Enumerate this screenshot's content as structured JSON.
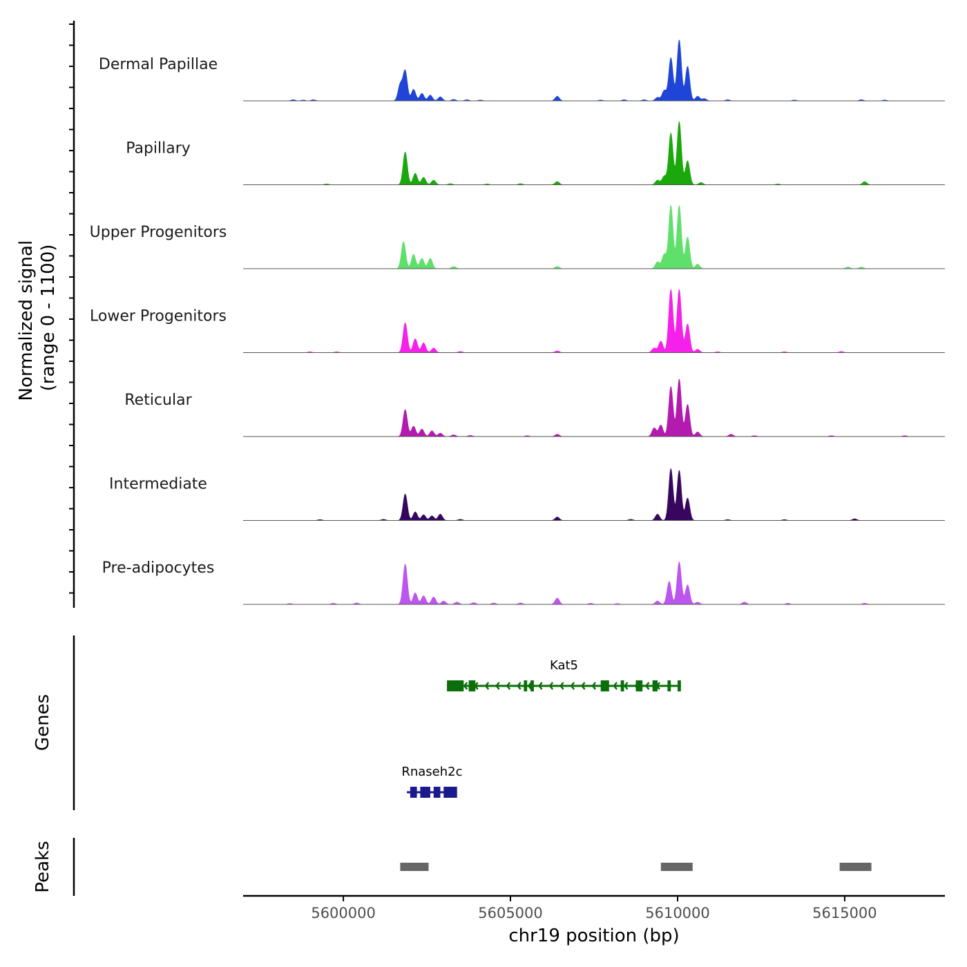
{
  "chart_data": {
    "type": "area",
    "title": "",
    "region": "chr19",
    "xlabel": "chr19 position (bp)",
    "ylabel": "Normalized signal\n(range 0 - 1100)",
    "ylabel_lines": [
      "Normalized signal",
      "(range 0 - 1100)"
    ],
    "ylim": [
      0,
      1100
    ],
    "xlim": [
      5597000,
      5618000
    ],
    "x_ticks": [
      5600000,
      5605000,
      5610000,
      5615000
    ],
    "x_tick_labels": [
      "5600000",
      "5605000",
      "5610000",
      "5615000"
    ],
    "coverage_tracks": [
      {
        "name": "Dermal Papillae",
        "color": "#1f44d8",
        "peaks": [
          {
            "x": 5598500,
            "h": 20
          },
          {
            "x": 5598800,
            "h": 15
          },
          {
            "x": 5599100,
            "h": 20
          },
          {
            "x": 5601700,
            "h": 280
          },
          {
            "x": 5601850,
            "h": 520
          },
          {
            "x": 5602100,
            "h": 200
          },
          {
            "x": 5602350,
            "h": 130
          },
          {
            "x": 5602600,
            "h": 100
          },
          {
            "x": 5602900,
            "h": 70
          },
          {
            "x": 5603300,
            "h": 25
          },
          {
            "x": 5603700,
            "h": 20
          },
          {
            "x": 5604100,
            "h": 15
          },
          {
            "x": 5606400,
            "h": 80
          },
          {
            "x": 5607700,
            "h": 15
          },
          {
            "x": 5608400,
            "h": 20
          },
          {
            "x": 5609000,
            "h": 20
          },
          {
            "x": 5609400,
            "h": 60
          },
          {
            "x": 5609600,
            "h": 180
          },
          {
            "x": 5609800,
            "h": 750
          },
          {
            "x": 5610050,
            "h": 1060
          },
          {
            "x": 5610300,
            "h": 600
          },
          {
            "x": 5610600,
            "h": 80
          },
          {
            "x": 5610800,
            "h": 40
          },
          {
            "x": 5611500,
            "h": 20
          },
          {
            "x": 5613500,
            "h": 15
          },
          {
            "x": 5615500,
            "h": 20
          },
          {
            "x": 5616200,
            "h": 15
          }
        ]
      },
      {
        "name": "Papillary",
        "color": "#1aa80c",
        "peaks": [
          {
            "x": 5599500,
            "h": 15
          },
          {
            "x": 5601850,
            "h": 570
          },
          {
            "x": 5602150,
            "h": 200
          },
          {
            "x": 5602400,
            "h": 130
          },
          {
            "x": 5602700,
            "h": 80
          },
          {
            "x": 5603200,
            "h": 20
          },
          {
            "x": 5604300,
            "h": 15
          },
          {
            "x": 5605300,
            "h": 20
          },
          {
            "x": 5606400,
            "h": 55
          },
          {
            "x": 5609400,
            "h": 80
          },
          {
            "x": 5609600,
            "h": 150
          },
          {
            "x": 5609800,
            "h": 900
          },
          {
            "x": 5610050,
            "h": 1100
          },
          {
            "x": 5610300,
            "h": 420
          },
          {
            "x": 5610700,
            "h": 40
          },
          {
            "x": 5613000,
            "h": 15
          },
          {
            "x": 5615600,
            "h": 55
          }
        ]
      },
      {
        "name": "Upper Progenitors",
        "color": "#5fe06b",
        "peaks": [
          {
            "x": 5601800,
            "h": 470
          },
          {
            "x": 5602100,
            "h": 250
          },
          {
            "x": 5602350,
            "h": 180
          },
          {
            "x": 5602600,
            "h": 180
          },
          {
            "x": 5603300,
            "h": 40
          },
          {
            "x": 5606400,
            "h": 40
          },
          {
            "x": 5609400,
            "h": 120
          },
          {
            "x": 5609600,
            "h": 250
          },
          {
            "x": 5609800,
            "h": 1100
          },
          {
            "x": 5610050,
            "h": 1100
          },
          {
            "x": 5610300,
            "h": 550
          },
          {
            "x": 5610600,
            "h": 80
          },
          {
            "x": 5615100,
            "h": 30
          },
          {
            "x": 5615500,
            "h": 30
          }
        ]
      },
      {
        "name": "Lower Progenitors",
        "color": "#f521ea",
        "peaks": [
          {
            "x": 5599000,
            "h": 15
          },
          {
            "x": 5599800,
            "h": 15
          },
          {
            "x": 5601850,
            "h": 520
          },
          {
            "x": 5602150,
            "h": 240
          },
          {
            "x": 5602400,
            "h": 170
          },
          {
            "x": 5602700,
            "h": 80
          },
          {
            "x": 5603500,
            "h": 20
          },
          {
            "x": 5606400,
            "h": 30
          },
          {
            "x": 5609300,
            "h": 80
          },
          {
            "x": 5609500,
            "h": 200
          },
          {
            "x": 5609800,
            "h": 1100
          },
          {
            "x": 5610050,
            "h": 1100
          },
          {
            "x": 5610300,
            "h": 500
          },
          {
            "x": 5610600,
            "h": 60
          },
          {
            "x": 5611200,
            "h": 15
          },
          {
            "x": 5613200,
            "h": 15
          },
          {
            "x": 5614900,
            "h": 20
          }
        ]
      },
      {
        "name": "Reticular",
        "color": "#b31ab0",
        "peaks": [
          {
            "x": 5601850,
            "h": 470
          },
          {
            "x": 5602100,
            "h": 180
          },
          {
            "x": 5602350,
            "h": 130
          },
          {
            "x": 5602650,
            "h": 100
          },
          {
            "x": 5602900,
            "h": 60
          },
          {
            "x": 5603300,
            "h": 30
          },
          {
            "x": 5603800,
            "h": 20
          },
          {
            "x": 5605500,
            "h": 15
          },
          {
            "x": 5606400,
            "h": 40
          },
          {
            "x": 5609300,
            "h": 150
          },
          {
            "x": 5609500,
            "h": 200
          },
          {
            "x": 5609800,
            "h": 870
          },
          {
            "x": 5610050,
            "h": 1000
          },
          {
            "x": 5610300,
            "h": 560
          },
          {
            "x": 5610600,
            "h": 80
          },
          {
            "x": 5611600,
            "h": 40
          },
          {
            "x": 5612300,
            "h": 15
          },
          {
            "x": 5614600,
            "h": 15
          },
          {
            "x": 5616800,
            "h": 15
          }
        ]
      },
      {
        "name": "Intermediate",
        "color": "#37075f",
        "peaks": [
          {
            "x": 5599300,
            "h": 15
          },
          {
            "x": 5601200,
            "h": 20
          },
          {
            "x": 5601850,
            "h": 460
          },
          {
            "x": 5602150,
            "h": 150
          },
          {
            "x": 5602400,
            "h": 100
          },
          {
            "x": 5602650,
            "h": 80
          },
          {
            "x": 5602900,
            "h": 110
          },
          {
            "x": 5603500,
            "h": 20
          },
          {
            "x": 5606400,
            "h": 60
          },
          {
            "x": 5608600,
            "h": 20
          },
          {
            "x": 5609400,
            "h": 110
          },
          {
            "x": 5609800,
            "h": 900
          },
          {
            "x": 5610050,
            "h": 870
          },
          {
            "x": 5610300,
            "h": 390
          },
          {
            "x": 5611500,
            "h": 15
          },
          {
            "x": 5613200,
            "h": 15
          },
          {
            "x": 5615300,
            "h": 30
          }
        ]
      },
      {
        "name": "Pre-adipocytes",
        "color": "#bd55ef",
        "peaks": [
          {
            "x": 5598400,
            "h": 15
          },
          {
            "x": 5599700,
            "h": 20
          },
          {
            "x": 5600400,
            "h": 25
          },
          {
            "x": 5601850,
            "h": 700
          },
          {
            "x": 5602150,
            "h": 200
          },
          {
            "x": 5602400,
            "h": 150
          },
          {
            "x": 5602700,
            "h": 130
          },
          {
            "x": 5603000,
            "h": 60
          },
          {
            "x": 5603400,
            "h": 40
          },
          {
            "x": 5603900,
            "h": 30
          },
          {
            "x": 5604500,
            "h": 25
          },
          {
            "x": 5605300,
            "h": 25
          },
          {
            "x": 5606400,
            "h": 110
          },
          {
            "x": 5607400,
            "h": 20
          },
          {
            "x": 5608200,
            "h": 15
          },
          {
            "x": 5609400,
            "h": 60
          },
          {
            "x": 5609750,
            "h": 400
          },
          {
            "x": 5610050,
            "h": 740
          },
          {
            "x": 5610300,
            "h": 340
          },
          {
            "x": 5610600,
            "h": 40
          },
          {
            "x": 5612000,
            "h": 40
          },
          {
            "x": 5613300,
            "h": 20
          },
          {
            "x": 5615600,
            "h": 20
          }
        ]
      }
    ],
    "genes_label": "Genes",
    "genes": [
      {
        "name": "Kat5",
        "color": "#0a6e0a",
        "strand": "-",
        "start": 5603100,
        "end": 5610100,
        "exons": [
          [
            5603100,
            5603600
          ],
          [
            5603750,
            5603950
          ],
          [
            5605400,
            5605500
          ],
          [
            5605600,
            5605700
          ],
          [
            5607700,
            5607950
          ],
          [
            5608300,
            5608400
          ],
          [
            5608750,
            5608950
          ],
          [
            5609250,
            5609400
          ],
          [
            5609700,
            5609800
          ],
          [
            5610000,
            5610100
          ]
        ]
      },
      {
        "name": "Rnaseh2c",
        "color": "#1a1a8c",
        "strand": "-",
        "start": 5601900,
        "end": 5603400,
        "exons": [
          [
            5602000,
            5602200
          ],
          [
            5602300,
            5602600
          ],
          [
            5602700,
            5602900
          ],
          [
            5603000,
            5603400
          ]
        ]
      }
    ],
    "peaks_label": "Peaks",
    "peak_regions": [
      [
        5601700,
        5602550
      ],
      [
        5609500,
        5610450
      ],
      [
        5614850,
        5615800
      ]
    ]
  }
}
